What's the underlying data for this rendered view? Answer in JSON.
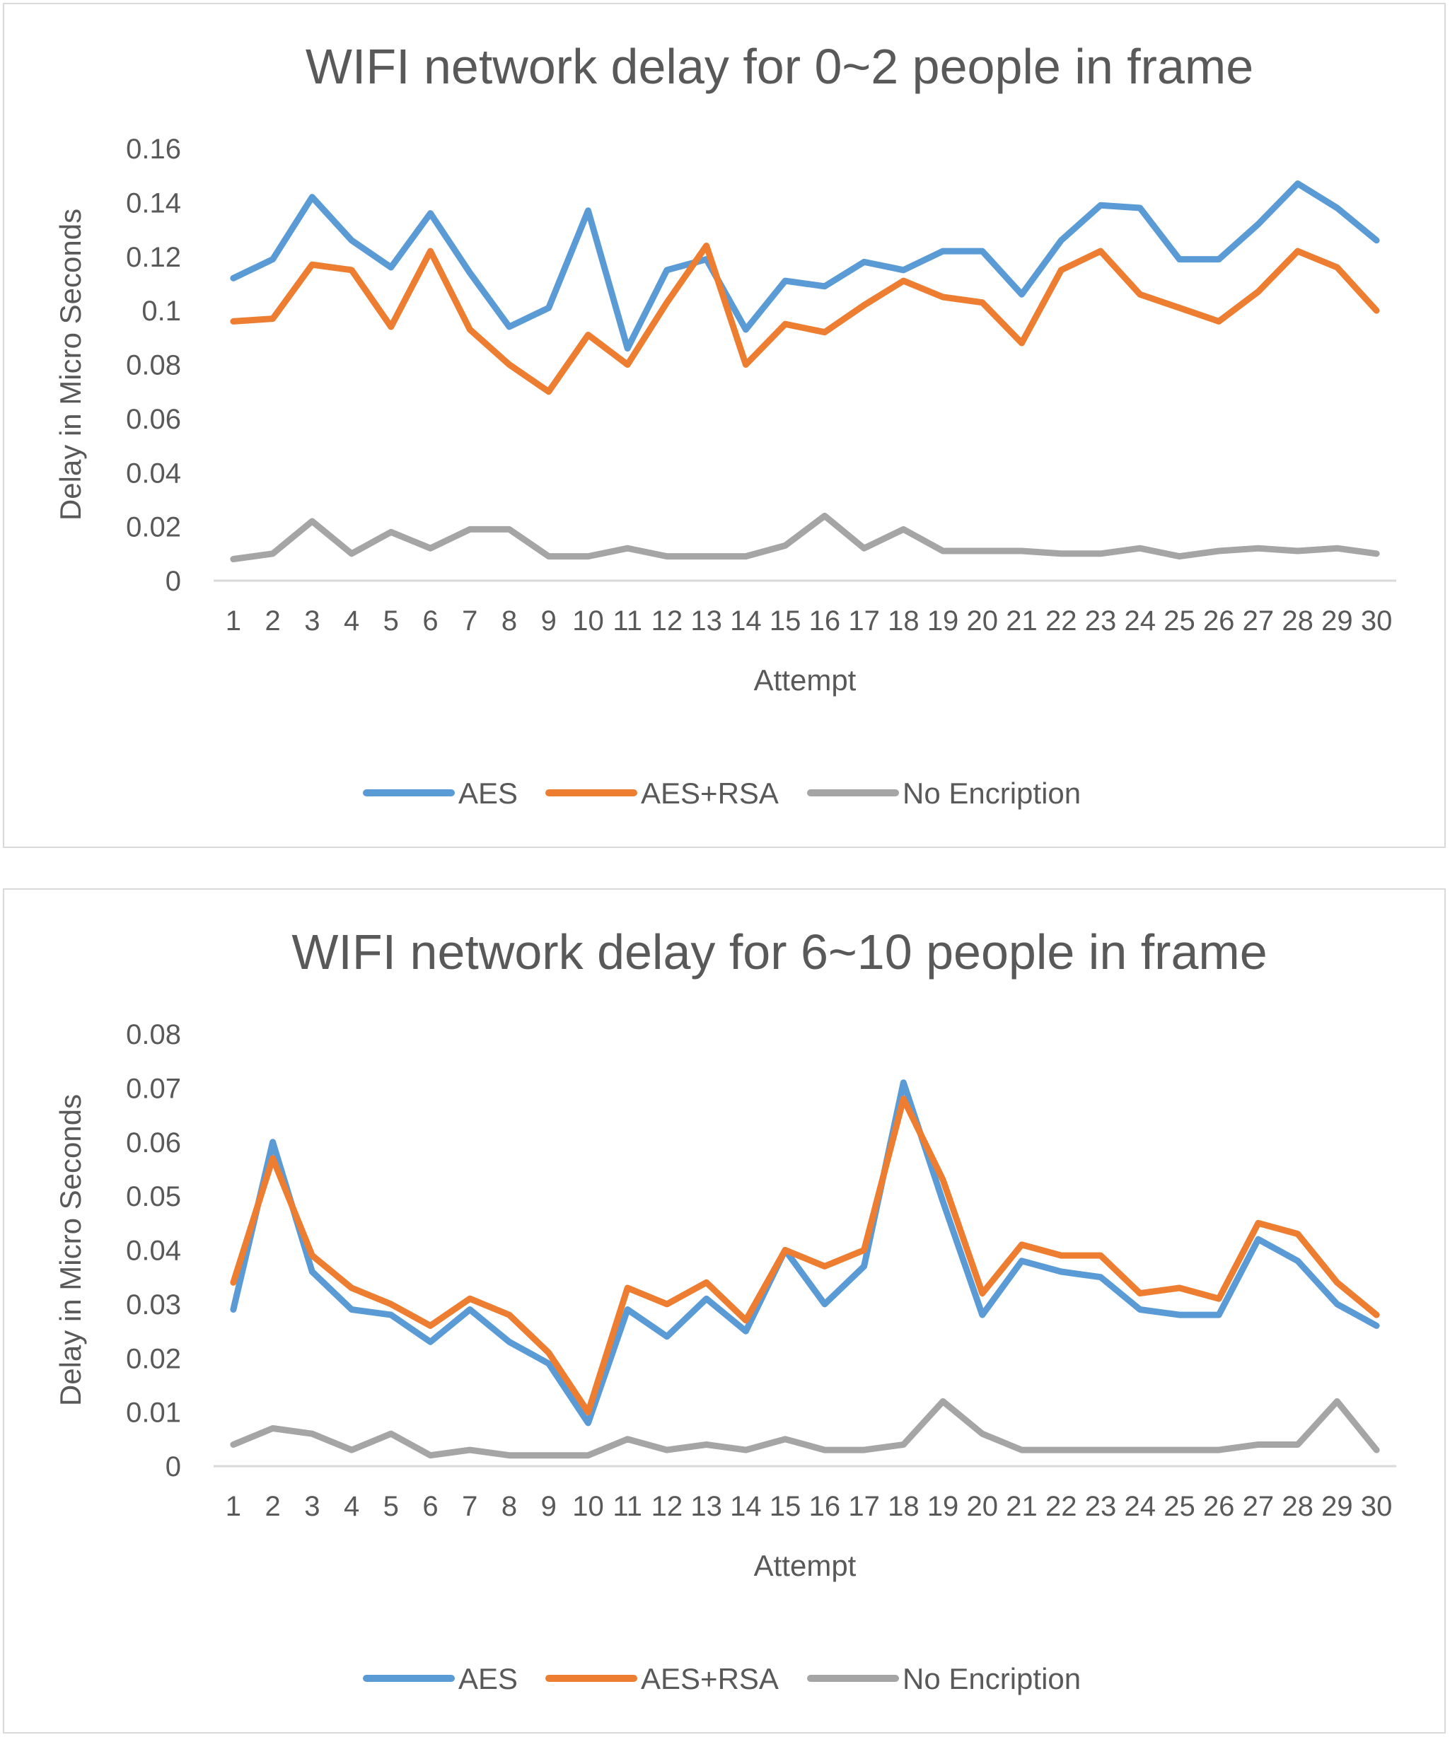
{
  "chart_data": [
    {
      "type": "line",
      "title": "WIFI network delay for 0~2 people in frame",
      "xlabel": "Attempt",
      "ylabel": "Delay in Micro Seconds",
      "ylim": [
        0,
        0.16
      ],
      "yticks": [
        "0",
        "0.02",
        "0.04",
        "0.06",
        "0.08",
        "0.1",
        "0.12",
        "0.14",
        "0.16"
      ],
      "grid": false,
      "legend_position": "bottom",
      "categories": [
        "1",
        "2",
        "3",
        "4",
        "5",
        "6",
        "7",
        "8",
        "9",
        "10",
        "11",
        "12",
        "13",
        "14",
        "15",
        "16",
        "17",
        "18",
        "19",
        "20",
        "21",
        "22",
        "23",
        "24",
        "25",
        "26",
        "27",
        "28",
        "29",
        "30"
      ],
      "series": [
        {
          "name": "AES",
          "color": "#5b9bd5",
          "values": [
            0.112,
            0.119,
            0.142,
            0.126,
            0.116,
            0.136,
            0.114,
            0.094,
            0.101,
            0.137,
            0.086,
            0.115,
            0.119,
            0.093,
            0.111,
            0.109,
            0.118,
            0.115,
            0.122,
            0.122,
            0.106,
            0.126,
            0.139,
            0.138,
            0.119,
            0.119,
            0.132,
            0.147,
            0.138,
            0.126
          ]
        },
        {
          "name": "AES+RSA",
          "color": "#ed7d31",
          "values": [
            0.096,
            0.097,
            0.117,
            0.115,
            0.094,
            0.122,
            0.093,
            0.08,
            0.07,
            0.091,
            0.08,
            0.103,
            0.124,
            0.08,
            0.095,
            0.092,
            0.102,
            0.111,
            0.105,
            0.103,
            0.088,
            0.115,
            0.122,
            0.106,
            0.101,
            0.096,
            0.107,
            0.122,
            0.116,
            0.1
          ]
        },
        {
          "name": "No Encription",
          "color": "#a5a5a5",
          "values": [
            0.008,
            0.01,
            0.022,
            0.01,
            0.018,
            0.012,
            0.019,
            0.019,
            0.009,
            0.009,
            0.012,
            0.009,
            0.009,
            0.009,
            0.013,
            0.024,
            0.012,
            0.019,
            0.011,
            0.011,
            0.011,
            0.01,
            0.01,
            0.012,
            0.009,
            0.011,
            0.012,
            0.011,
            0.012,
            0.01
          ]
        }
      ]
    },
    {
      "type": "line",
      "title": "WIFI network delay for 6~10 people in frame",
      "xlabel": "Attempt",
      "ylabel": "Delay in Micro Seconds",
      "ylim": [
        0,
        0.08
      ],
      "yticks": [
        "0",
        "0.01",
        "0.02",
        "0.03",
        "0.04",
        "0.05",
        "0.06",
        "0.07",
        "0.08"
      ],
      "grid": false,
      "legend_position": "bottom",
      "categories": [
        "1",
        "2",
        "3",
        "4",
        "5",
        "6",
        "7",
        "8",
        "9",
        "10",
        "11",
        "12",
        "13",
        "14",
        "15",
        "16",
        "17",
        "18",
        "19",
        "20",
        "21",
        "22",
        "23",
        "24",
        "25",
        "26",
        "27",
        "28",
        "29",
        "30"
      ],
      "series": [
        {
          "name": "AES",
          "color": "#5b9bd5",
          "values": [
            0.029,
            0.06,
            0.036,
            0.029,
            0.028,
            0.023,
            0.029,
            0.023,
            0.019,
            0.008,
            0.029,
            0.024,
            0.031,
            0.025,
            0.04,
            0.03,
            0.037,
            0.071,
            0.049,
            0.028,
            0.038,
            0.036,
            0.035,
            0.029,
            0.028,
            0.028,
            0.042,
            0.038,
            0.03,
            0.026
          ]
        },
        {
          "name": "AES+RSA",
          "color": "#ed7d31",
          "values": [
            0.034,
            0.057,
            0.039,
            0.033,
            0.03,
            0.026,
            0.031,
            0.028,
            0.021,
            0.01,
            0.033,
            0.03,
            0.034,
            0.027,
            0.04,
            0.037,
            0.04,
            0.068,
            0.053,
            0.032,
            0.041,
            0.039,
            0.039,
            0.032,
            0.033,
            0.031,
            0.045,
            0.043,
            0.034,
            0.028
          ]
        },
        {
          "name": "No Encription",
          "color": "#a5a5a5",
          "values": [
            0.004,
            0.007,
            0.006,
            0.003,
            0.006,
            0.002,
            0.003,
            0.002,
            0.002,
            0.002,
            0.005,
            0.003,
            0.004,
            0.003,
            0.005,
            0.003,
            0.003,
            0.004,
            0.012,
            0.006,
            0.003,
            0.003,
            0.003,
            0.003,
            0.003,
            0.003,
            0.004,
            0.004,
            0.012,
            0.003
          ]
        }
      ]
    }
  ]
}
